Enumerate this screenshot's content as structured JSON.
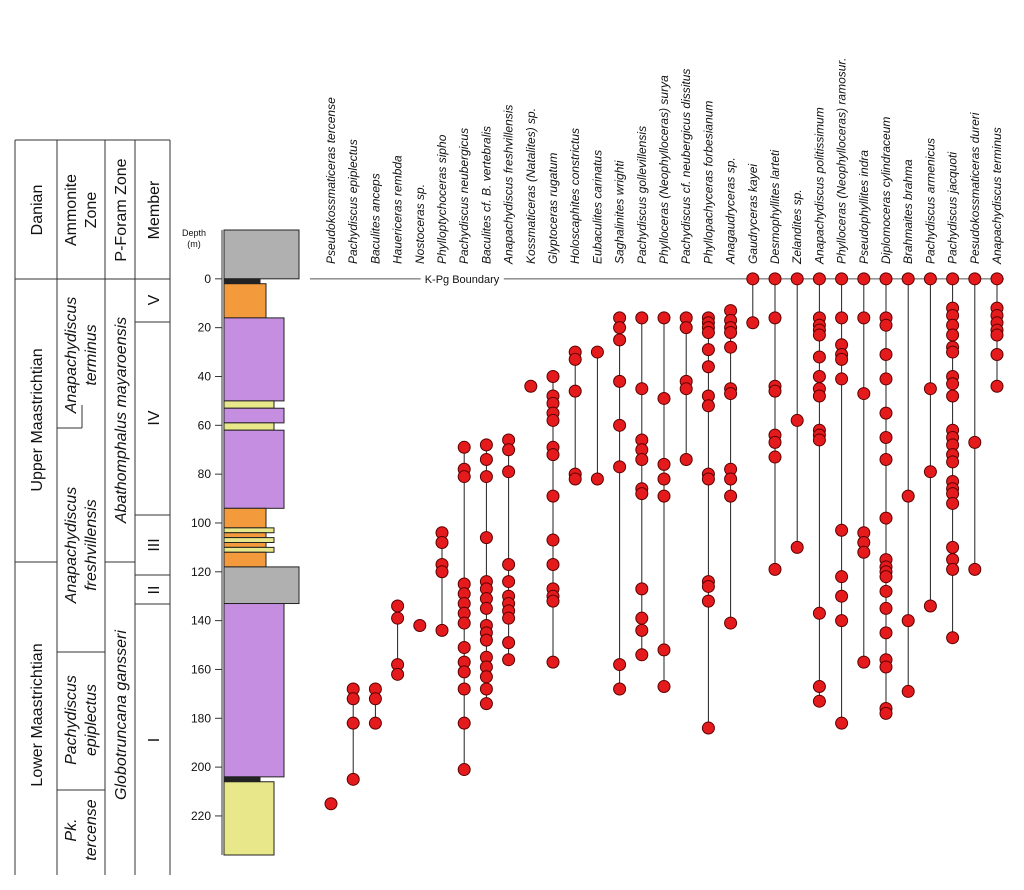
{
  "chart_data": {
    "type": "range",
    "ylabel": "Depth",
    "yunit": "(m)",
    "ylim": [
      -20,
      236
    ],
    "yticks": [
      0,
      20,
      40,
      60,
      80,
      100,
      120,
      140,
      160,
      180,
      200,
      220
    ],
    "boundary": {
      "label": "K-Pg Boundary",
      "depth": 0
    },
    "marker_color": "#e41a1c",
    "stratigraphy": {
      "stage_header": [],
      "stages": [
        "Danian",
        "Upper Maastrichtian",
        "Lower Maastrichtian"
      ],
      "ammonite_header": [
        "Ammonite",
        "Zone"
      ],
      "ammonite_zones": [
        [
          "Anapachydiscus",
          "terminus"
        ],
        [
          "Anapachydiscus",
          "freshvillensis"
        ],
        [
          "Pachydiscus",
          "epiplectus"
        ],
        [
          "Pk.",
          "tercense"
        ]
      ],
      "foram_header": "P-Foram Zone",
      "foram_zones": [
        "Abathomphalus mayaroensis",
        "Globotruncana gansseri"
      ],
      "member_header": "Member",
      "members": [
        "V",
        "IV",
        "III",
        "II",
        "I"
      ]
    },
    "lithology": [
      {
        "top": -20,
        "base": 0,
        "color": "#b0b0b0"
      },
      {
        "top": 0,
        "base": 2,
        "color": "#222222"
      },
      {
        "top": 2,
        "base": 16,
        "color": "#f39a3c"
      },
      {
        "top": 16,
        "base": 50,
        "color": "#c58ee0"
      },
      {
        "top": 50,
        "base": 53,
        "color": "#e8e88a"
      },
      {
        "top": 53,
        "base": 59,
        "color": "#c58ee0"
      },
      {
        "top": 59,
        "base": 62,
        "color": "#e8e88a"
      },
      {
        "top": 62,
        "base": 94,
        "color": "#c58ee0"
      },
      {
        "top": 94,
        "base": 102,
        "color": "#f39a3c"
      },
      {
        "top": 102,
        "base": 104,
        "color": "#e8e88a"
      },
      {
        "top": 104,
        "base": 106,
        "color": "#f39a3c"
      },
      {
        "top": 106,
        "base": 108,
        "color": "#e8e88a"
      },
      {
        "top": 108,
        "base": 110,
        "color": "#f39a3c"
      },
      {
        "top": 110,
        "base": 112,
        "color": "#e8e88a"
      },
      {
        "top": 112,
        "base": 118,
        "color": "#f39a3c"
      },
      {
        "top": 118,
        "base": 133,
        "color": "#b0b0b0"
      },
      {
        "top": 133,
        "base": 204,
        "color": "#c58ee0"
      },
      {
        "top": 204,
        "base": 206,
        "color": "#222222"
      },
      {
        "top": 206,
        "base": 236,
        "color": "#e8e88a"
      }
    ],
    "series": [
      {
        "name": "Pseudokossmaticeras tercense",
        "values": [
          215
        ]
      },
      {
        "name": "Pachydiscus epiplectus",
        "values": [
          168,
          172,
          182,
          205
        ]
      },
      {
        "name": "Baculites anceps",
        "values": [
          168,
          172,
          182
        ]
      },
      {
        "name": "Hauericeras rembda",
        "values": [
          134,
          139,
          158,
          162
        ]
      },
      {
        "name": "Nostoceras sp.",
        "values": [
          142
        ]
      },
      {
        "name": "Phylloptychoceras sipho",
        "values": [
          104,
          108,
          117,
          120,
          144
        ]
      },
      {
        "name": "Pachydiscus neubergicus",
        "values": [
          69,
          78,
          81,
          125,
          129,
          133,
          137,
          141,
          151,
          157,
          161,
          168,
          182,
          201
        ]
      },
      {
        "name": "Baculites cf. B. vertebralis",
        "values": [
          68,
          74,
          81,
          106,
          124,
          127,
          131,
          135,
          142,
          145,
          148,
          155,
          159,
          163,
          168,
          174
        ]
      },
      {
        "name": "Anapachydiscus freshvillensis",
        "values": [
          66,
          70,
          79,
          117,
          124,
          130,
          133,
          136,
          139,
          149,
          156
        ]
      },
      {
        "name": "Kossmaticeras (Natalites) sp.",
        "values": [
          44
        ]
      },
      {
        "name": "Glyptoceras rugatum",
        "values": [
          40,
          48,
          51,
          55,
          58,
          69,
          72,
          89,
          107,
          117,
          127,
          130,
          132,
          157
        ]
      },
      {
        "name": "Holoscaphites constrictus",
        "values": [
          30,
          33,
          46,
          80,
          82
        ]
      },
      {
        "name": "Eubaculites carinatus",
        "values": [
          30,
          82
        ]
      },
      {
        "name": "Saghalinites wrighti",
        "values": [
          16,
          20,
          25,
          42,
          60,
          77,
          158,
          168
        ]
      },
      {
        "name": "Pachydiscus gollevillensis",
        "values": [
          16,
          45,
          66,
          70,
          74,
          86,
          88,
          127,
          139,
          144,
          154
        ]
      },
      {
        "name": "Phylloceras (Neophylloceras) surya",
        "values": [
          16,
          49,
          76,
          82,
          89,
          152,
          167
        ]
      },
      {
        "name": "Pachydiscus cf. neubergicus dissitus",
        "values": [
          16,
          20,
          42,
          45,
          74
        ]
      },
      {
        "name": "Phyllopachyceras forbesianum",
        "values": [
          16,
          18,
          20,
          22,
          29,
          36,
          48,
          52,
          80,
          82,
          124,
          126,
          132,
          184
        ]
      },
      {
        "name": "Anagaudryceras sp.",
        "values": [
          13,
          17,
          20,
          22,
          28,
          45,
          47,
          78,
          82,
          89,
          141
        ]
      },
      {
        "name": "Gaudryceras kayei",
        "values": [
          0,
          18
        ]
      },
      {
        "name": "Desmophyllites larteti",
        "values": [
          0,
          16,
          44,
          46,
          64,
          67,
          73,
          119
        ]
      },
      {
        "name": "Zelandites sp.",
        "values": [
          0,
          58,
          110
        ]
      },
      {
        "name": "Anapachydiscus politissimum",
        "values": [
          0,
          16,
          19,
          21,
          23,
          32,
          40,
          45,
          48,
          62,
          64,
          66,
          137,
          167,
          173
        ]
      },
      {
        "name": "Phylloceras (Neophylloceras) ramosur.",
        "values": [
          0,
          16,
          27,
          31,
          33,
          41,
          103,
          122,
          130,
          140,
          182
        ]
      },
      {
        "name": "Pseudophyllites indra",
        "values": [
          0,
          16,
          47,
          104,
          108,
          112,
          157
        ]
      },
      {
        "name": "Diplomoceras cylindraceum",
        "values": [
          0,
          16,
          19,
          31,
          41,
          55,
          65,
          74,
          98,
          115,
          118,
          120,
          122,
          128,
          135,
          145,
          156,
          159,
          176,
          178
        ]
      },
      {
        "name": "Brahmaites brahma",
        "values": [
          0,
          89,
          140,
          169
        ]
      },
      {
        "name": "Pachydiscus armenicus",
        "values": [
          0,
          45,
          79,
          134
        ]
      },
      {
        "name": "Pachydiscus jacquoti",
        "values": [
          0,
          12,
          15,
          19,
          23,
          28,
          30,
          40,
          43,
          48,
          62,
          65,
          68,
          72,
          75,
          83,
          86,
          88,
          92,
          110,
          115,
          119,
          147
        ]
      },
      {
        "name": "Pesudokossmaticeras dureri",
        "values": [
          0,
          67,
          119
        ]
      },
      {
        "name": "Anapachydiscus terminus",
        "values": [
          0,
          12,
          15,
          18,
          21,
          23,
          31,
          44
        ]
      }
    ]
  }
}
